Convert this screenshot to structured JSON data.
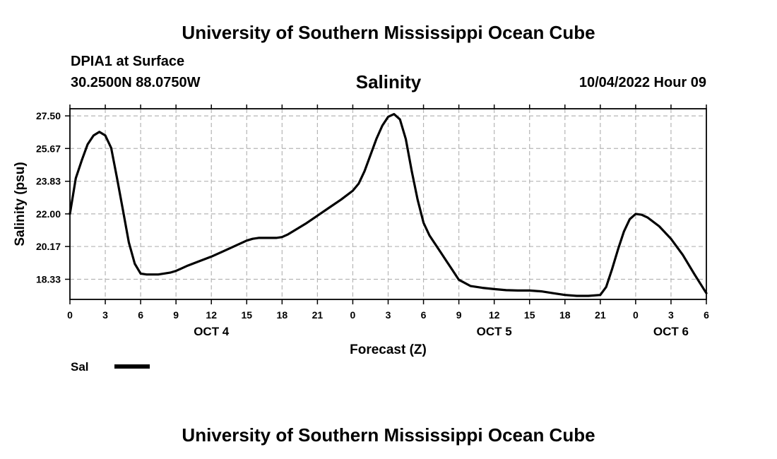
{
  "header": {
    "title": "University of Southern Mississippi Ocean Cube",
    "station": "DPIA1 at Surface",
    "coords": "30.2500N  88.0750W",
    "variable": "Salinity",
    "datetime": "10/04/2022 Hour 09"
  },
  "footer": {
    "title": "University of Southern Mississippi Ocean Cube"
  },
  "legend": {
    "label": "Sal",
    "color": "#000000"
  },
  "chart_data": {
    "type": "line",
    "title": "Salinity",
    "xlabel": "Forecast (Z)",
    "ylabel": "Salinity (psu)",
    "xlim": [
      0,
      54
    ],
    "ylim": [
      17.2,
      27.9
    ],
    "grid": true,
    "yticks": [
      18.33,
      20.17,
      22.0,
      23.83,
      25.67,
      27.5
    ],
    "ytick_labels": [
      "18.33",
      "20.17",
      "22.00",
      "23.83",
      "25.67",
      "27.50"
    ],
    "xticks": [
      0,
      3,
      6,
      9,
      12,
      15,
      18,
      21,
      24,
      27,
      30,
      33,
      36,
      39,
      42,
      45,
      48,
      51,
      54
    ],
    "xtick_labels": [
      "0",
      "3",
      "6",
      "9",
      "12",
      "15",
      "18",
      "21",
      "0",
      "3",
      "6",
      "9",
      "12",
      "15",
      "18",
      "21",
      "0",
      "3",
      "6"
    ],
    "date_labels": [
      {
        "x": 12,
        "label": "OCT 4"
      },
      {
        "x": 36,
        "label": "OCT 5"
      },
      {
        "x": 51,
        "label": "OCT 6"
      }
    ],
    "series": [
      {
        "name": "Sal",
        "x": [
          0,
          0.5,
          1,
          1.5,
          2,
          2.5,
          3,
          3.5,
          4,
          4.5,
          5,
          5.5,
          6,
          6.5,
          7.5,
          8.5,
          9,
          10,
          11,
          12,
          13,
          14,
          15,
          15.5,
          16,
          16.5,
          17,
          17.5,
          18,
          18.5,
          19,
          20,
          21,
          22,
          23,
          24,
          24.5,
          25,
          26,
          26.5,
          27,
          27.5,
          28,
          28.5,
          29,
          29.5,
          30,
          30.5,
          31,
          31.5,
          32,
          32.5,
          33,
          34,
          35,
          36,
          37,
          38,
          39,
          40,
          41,
          42,
          43,
          44,
          45,
          45.5,
          46,
          46.5,
          47,
          47.5,
          48,
          48.5,
          49,
          50,
          51,
          52,
          53,
          54
        ],
        "y": [
          22.0,
          24.0,
          25.0,
          25.9,
          26.4,
          26.6,
          26.4,
          25.7,
          24.0,
          22.2,
          20.4,
          19.2,
          18.65,
          18.6,
          18.6,
          18.7,
          18.8,
          19.1,
          19.35,
          19.6,
          19.9,
          20.2,
          20.5,
          20.6,
          20.65,
          20.65,
          20.65,
          20.65,
          20.7,
          20.85,
          21.05,
          21.45,
          21.9,
          22.35,
          22.8,
          23.3,
          23.7,
          24.4,
          26.2,
          26.95,
          27.45,
          27.6,
          27.3,
          26.2,
          24.4,
          22.8,
          21.5,
          20.8,
          20.3,
          19.8,
          19.3,
          18.8,
          18.3,
          17.95,
          17.85,
          17.78,
          17.72,
          17.7,
          17.7,
          17.65,
          17.55,
          17.45,
          17.4,
          17.4,
          17.45,
          17.9,
          18.9,
          20.0,
          21.0,
          21.7,
          22.0,
          21.95,
          21.8,
          21.3,
          20.6,
          19.7,
          18.6,
          17.55
        ]
      }
    ]
  }
}
